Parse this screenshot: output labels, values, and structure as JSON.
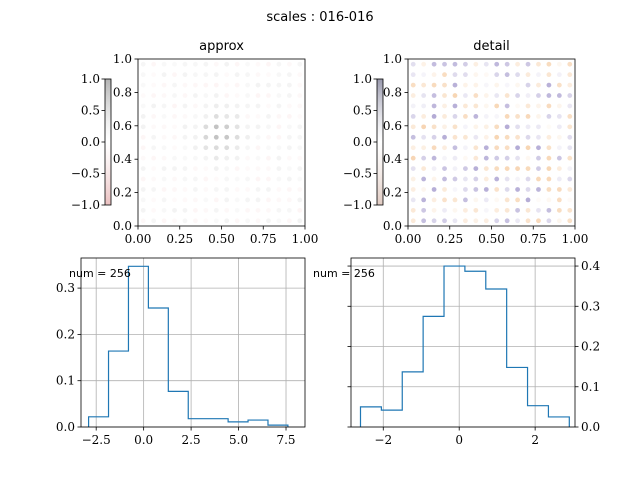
{
  "figure": {
    "suptitle": "scales : 016-016"
  },
  "chart_data": [
    {
      "type": "scatter",
      "title": "approx",
      "xlim": [
        0,
        1
      ],
      "ylim": [
        0,
        1
      ],
      "xticks": [
        "0.00",
        "0.25",
        "0.50",
        "0.75",
        "1.00"
      ],
      "yticks": [
        "0.0",
        "0.2",
        "0.4",
        "0.6",
        "0.8",
        "1.0"
      ],
      "grid_points": 16,
      "colorbar": {
        "range": [
          -1,
          1
        ],
        "ticks": [
          "−1.0",
          "−0.5",
          "0.0",
          "0.5",
          "1.0"
        ],
        "color_low": "#d98c8c",
        "color_high": "#7f7f7f"
      },
      "point_color_neg": "#e8a0a0",
      "point_color_pos": "#8a8a8a"
    },
    {
      "type": "scatter",
      "title": "detail",
      "xlim": [
        0,
        1
      ],
      "ylim": [
        0,
        1
      ],
      "xticks": [
        "0.00",
        "0.25",
        "0.50",
        "0.75",
        "1.00"
      ],
      "yticks": [
        "0.0",
        "0.2",
        "0.4",
        "0.6",
        "0.8",
        "1.0"
      ],
      "grid_points": 16,
      "colorbar": {
        "range": [
          -1,
          1
        ],
        "ticks": [
          "−1.0",
          "−0.5",
          "0.0",
          "0.5",
          "1.0"
        ],
        "color_low": "#c8a090",
        "color_high": "#555577"
      },
      "point_color_neg": "#f0b070",
      "point_color_pos": "#7060b0"
    },
    {
      "type": "bar",
      "subtype": "step-histogram",
      "annotation": "num = 256",
      "xlim": [
        -3.3,
        8.5
      ],
      "ylim": [
        0,
        0.365
      ],
      "xticks": [
        -2.5,
        0,
        2.5,
        5,
        7.5
      ],
      "xtick_labels": [
        "−2.5",
        "0.0",
        "2.5",
        "5.0",
        "7.5"
      ],
      "yticks": [
        0,
        0.1,
        0.2,
        0.3
      ],
      "ytick_labels": [
        "0.0",
        "0.1",
        "0.2",
        "0.3"
      ],
      "yaxis_side": "left",
      "grid": true,
      "edges": [
        -2.9,
        -1.85,
        -0.8,
        0.25,
        1.3,
        2.35,
        3.4,
        4.45,
        5.5,
        6.55,
        7.6
      ],
      "values": [
        0.022,
        0.164,
        0.347,
        0.257,
        0.077,
        0.018,
        0.018,
        0.011,
        0.015,
        0.004
      ],
      "color": "#1f77b4"
    },
    {
      "type": "bar",
      "subtype": "step-histogram",
      "annotation": "num = 256",
      "xlim": [
        -2.85,
        3.05
      ],
      "ylim": [
        0,
        0.42
      ],
      "xticks": [
        -2,
        0,
        2
      ],
      "xtick_labels": [
        "−2",
        "0",
        "2"
      ],
      "yticks": [
        0,
        0.1,
        0.2,
        0.3,
        0.4
      ],
      "ytick_labels": [
        "0.0",
        "0.1",
        "0.2",
        "0.3",
        "0.4"
      ],
      "yaxis_side": "right",
      "grid": true,
      "edges": [
        -2.6,
        -2.05,
        -1.5,
        -0.95,
        -0.4,
        0.15,
        0.7,
        1.25,
        1.8,
        2.35,
        2.9
      ],
      "values": [
        0.05,
        0.042,
        0.137,
        0.275,
        0.4,
        0.387,
        0.343,
        0.148,
        0.053,
        0.025
      ],
      "color": "#1f77b4"
    }
  ]
}
